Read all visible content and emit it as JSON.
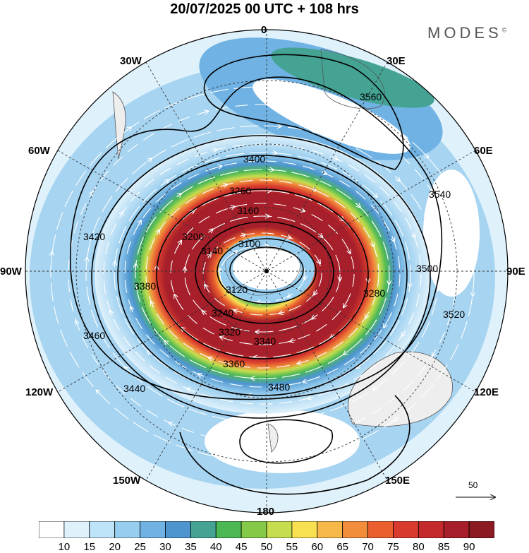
{
  "header": {
    "title": "20/07/2025  00 UTC  + 108 hrs",
    "brand": "MODES"
  },
  "longitude_labels": [
    "0",
    "30E",
    "60E",
    "90E",
    "120E",
    "150E",
    "180",
    "150W",
    "120W",
    "90W",
    "60W",
    "30W"
  ],
  "contour_labels": [
    "3100",
    "3120",
    "3140",
    "3160",
    "3200",
    "3240",
    "3260",
    "3280",
    "3320",
    "3340",
    "3360",
    "3380",
    "3400",
    "3420",
    "3440",
    "3460",
    "3480",
    "3500",
    "3520",
    "3540",
    "3560"
  ],
  "reference_vector": {
    "label": "50"
  },
  "colorbar": {
    "colors": [
      "#ffffff",
      "#dff1fb",
      "#bde4f8",
      "#97cdef",
      "#6fb2e3",
      "#4d95cf",
      "#45a394",
      "#4cb854",
      "#84c947",
      "#c6de4e",
      "#f9e052",
      "#f7b84a",
      "#f28d3c",
      "#ea5f2d",
      "#d83a2d",
      "#c42a2c",
      "#a61f2a",
      "#8b1a22"
    ],
    "labels": [
      "10",
      "15",
      "20",
      "25",
      "30",
      "35",
      "40",
      "45",
      "50",
      "55",
      "60",
      "65",
      "70",
      "75",
      "80",
      "85",
      "90"
    ]
  }
}
